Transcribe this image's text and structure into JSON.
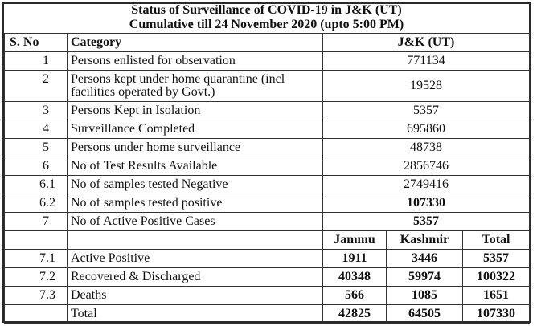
{
  "title_line1": "Status of Surveillance of COVID-19 in J&K (UT)",
  "title_line2": "Cumulative till 24 November 2020 (upto 5:00 PM)",
  "headers": {
    "sno": "S. No",
    "category": "Category",
    "value": "J&K (UT)"
  },
  "rows": [
    {
      "sno": "1",
      "category": "Persons enlisted for observation",
      "value": "771134"
    },
    {
      "sno": "2",
      "category": "Persons kept under home quarantine (incl facilities operated by Govt.)",
      "value": "19528"
    },
    {
      "sno": "3",
      "category": "Persons Kept in Isolation",
      "value": "5357"
    },
    {
      "sno": "4",
      "category": "Surveillance  Completed",
      "value": "695860"
    },
    {
      "sno": "5",
      "category": "Persons under home surveillance",
      "value": "48738"
    },
    {
      "sno": "6",
      "category": "No of Test Results Available",
      "value": "2856746"
    },
    {
      "sno": "6.1",
      "category": "No of samples tested Negative",
      "value": "2749416"
    },
    {
      "sno": "6.2",
      "category": "No of samples tested positive",
      "value": "107330"
    },
    {
      "sno": "7",
      "category": "No of Active Positive Cases",
      "value": "5357"
    }
  ],
  "regional_headers": {
    "jammu": "Jammu",
    "kashmir": "Kashmir",
    "total": "Total"
  },
  "regional_rows": [
    {
      "sno": "7.1",
      "category": "Active Positive",
      "jammu": "1911",
      "kashmir": "3446",
      "total": "5357"
    },
    {
      "sno": "7.2",
      "category": "Recovered & Discharged",
      "jammu": "40348",
      "kashmir": "59974",
      "total": "100322"
    },
    {
      "sno": "7.3",
      "category": "Deaths",
      "jammu": "566",
      "kashmir": "1085",
      "total": "1651"
    },
    {
      "sno": "",
      "category": "Total",
      "jammu": "42825",
      "kashmir": "64505",
      "total": "107330"
    }
  ]
}
